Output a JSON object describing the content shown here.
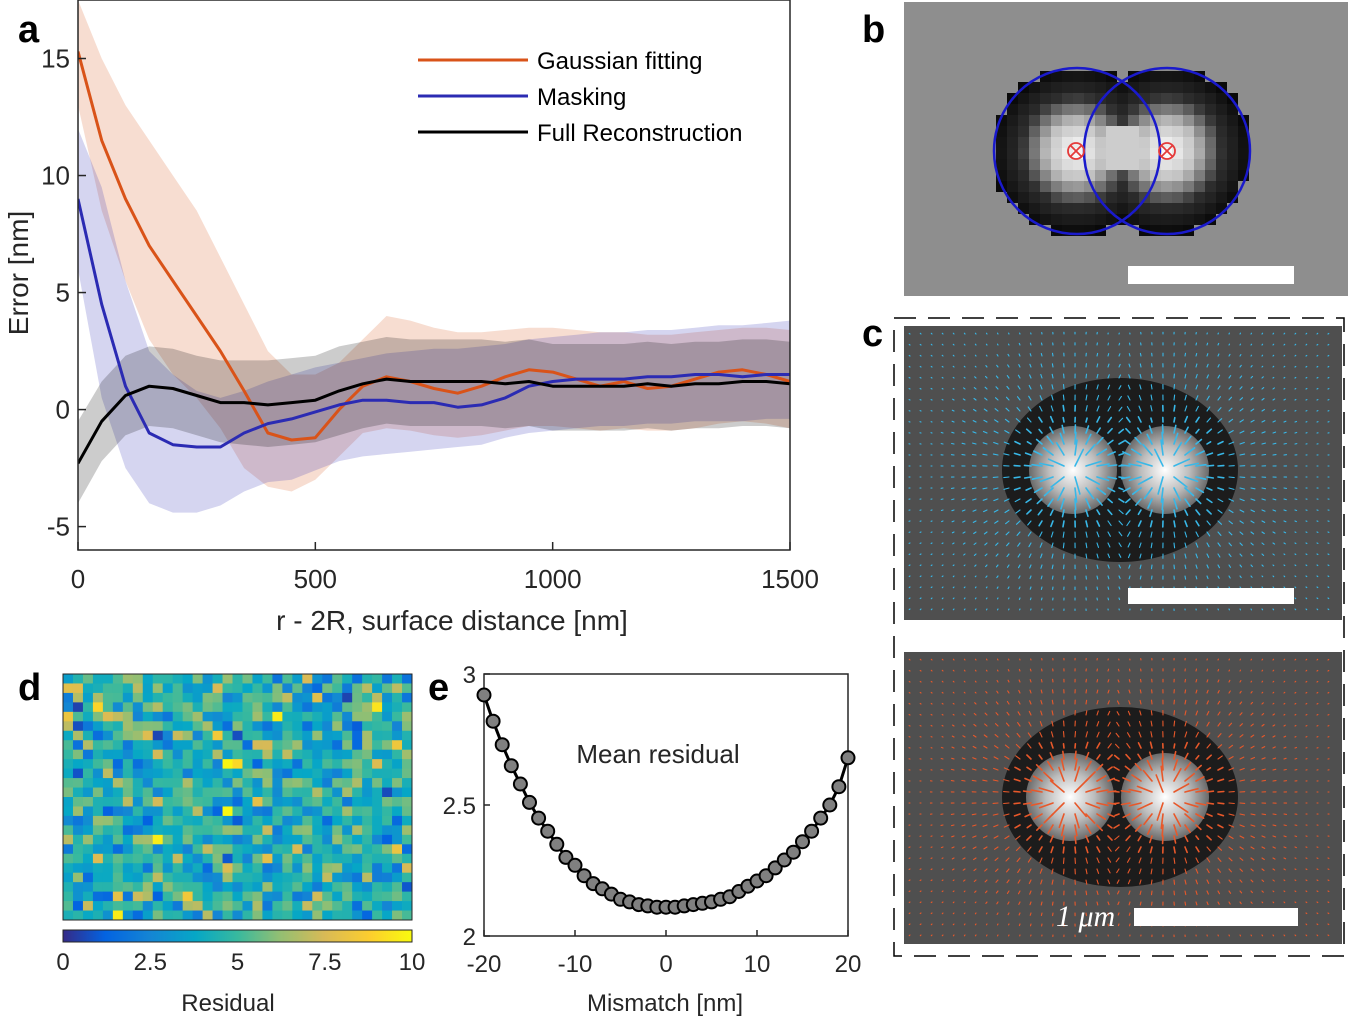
{
  "panel_labels": [
    "a",
    "b",
    "c",
    "d",
    "e"
  ],
  "chart_data": [
    {
      "panel": "a",
      "type": "line",
      "xlabel": "r - 2R, surface distance  [nm]",
      "ylabel": "Error [nm]",
      "xlim": [
        0,
        1500
      ],
      "ylim": [
        -6,
        17.5
      ],
      "xticks": [
        0,
        500,
        1000,
        1500
      ],
      "yticks": [
        -5,
        0,
        5,
        10,
        15
      ],
      "legend_position": "top-right",
      "series": [
        {
          "name": "Gaussian fitting",
          "color": "#d95319",
          "x": [
            0,
            50,
            100,
            150,
            200,
            250,
            300,
            350,
            400,
            450,
            500,
            550,
            600,
            650,
            700,
            750,
            800,
            850,
            900,
            950,
            1000,
            1050,
            1100,
            1150,
            1200,
            1250,
            1300,
            1350,
            1400,
            1450,
            1500
          ],
          "y": [
            15.3,
            11.5,
            9.0,
            7.0,
            5.5,
            4.0,
            2.5,
            0.8,
            -1.0,
            -1.3,
            -1.2,
            0.0,
            1.0,
            1.4,
            1.2,
            0.9,
            0.7,
            1.0,
            1.4,
            1.7,
            1.6,
            1.3,
            1.0,
            1.2,
            0.9,
            1.0,
            1.3,
            1.6,
            1.7,
            1.5,
            1.2
          ],
          "upper": [
            17.5,
            15.0,
            13.0,
            11.5,
            10.0,
            8.5,
            6.5,
            4.5,
            2.5,
            1.5,
            1.5,
            2.0,
            3.0,
            4.0,
            3.8,
            3.5,
            3.3,
            3.3,
            3.4,
            3.5,
            3.5,
            3.4,
            3.3,
            3.3,
            3.2,
            3.2,
            3.3,
            3.4,
            3.5,
            3.5,
            3.4
          ],
          "lower": [
            13.0,
            8.5,
            5.5,
            3.0,
            1.5,
            0.5,
            -0.8,
            -2.5,
            -3.3,
            -3.5,
            -3.0,
            -2.0,
            -1.0,
            -0.8,
            -0.9,
            -1.1,
            -1.2,
            -1.1,
            -0.9,
            -0.7,
            -0.7,
            -0.8,
            -0.9,
            -0.8,
            -0.9,
            -0.9,
            -0.8,
            -0.6,
            -0.5,
            -0.6,
            -0.8
          ]
        },
        {
          "name": "Masking",
          "color": "#2b2bb3",
          "x": [
            0,
            50,
            100,
            150,
            200,
            250,
            300,
            350,
            400,
            450,
            500,
            550,
            600,
            650,
            700,
            750,
            800,
            850,
            900,
            950,
            1000,
            1050,
            1100,
            1150,
            1200,
            1250,
            1300,
            1350,
            1400,
            1450,
            1500
          ],
          "y": [
            9.0,
            4.5,
            1.0,
            -1.0,
            -1.5,
            -1.6,
            -1.6,
            -1.0,
            -0.6,
            -0.4,
            -0.1,
            0.2,
            0.4,
            0.4,
            0.3,
            0.3,
            0.1,
            0.2,
            0.5,
            1.0,
            1.2,
            1.3,
            1.3,
            1.3,
            1.4,
            1.4,
            1.5,
            1.5,
            1.4,
            1.5,
            1.5
          ],
          "upper": [
            12.0,
            9.5,
            5.5,
            2.5,
            1.5,
            0.8,
            0.5,
            0.8,
            1.2,
            1.5,
            1.8,
            2.0,
            2.2,
            2.4,
            2.5,
            2.6,
            2.6,
            2.7,
            2.8,
            3.0,
            3.1,
            3.2,
            3.3,
            3.3,
            3.4,
            3.4,
            3.5,
            3.6,
            3.6,
            3.7,
            3.8
          ],
          "lower": [
            6.0,
            0.5,
            -2.5,
            -4.0,
            -4.4,
            -4.4,
            -4.1,
            -3.5,
            -3.1,
            -3.0,
            -2.6,
            -2.2,
            -2.0,
            -1.9,
            -1.8,
            -1.7,
            -1.6,
            -1.5,
            -1.2,
            -1.0,
            -0.9,
            -0.8,
            -0.7,
            -0.7,
            -0.6,
            -0.6,
            -0.5,
            -0.5,
            -0.5,
            -0.4,
            -0.4
          ]
        },
        {
          "name": "Full Reconstruction",
          "color": "#000000",
          "x": [
            0,
            50,
            100,
            150,
            200,
            250,
            300,
            350,
            400,
            450,
            500,
            550,
            600,
            650,
            700,
            750,
            800,
            850,
            900,
            950,
            1000,
            1050,
            1100,
            1150,
            1200,
            1250,
            1300,
            1350,
            1400,
            1450,
            1500
          ],
          "y": [
            -2.3,
            -0.5,
            0.6,
            1.0,
            0.9,
            0.6,
            0.3,
            0.3,
            0.2,
            0.3,
            0.4,
            0.8,
            1.1,
            1.3,
            1.2,
            1.2,
            1.2,
            1.2,
            1.1,
            1.2,
            1.0,
            1.0,
            1.0,
            1.0,
            1.1,
            1.0,
            1.1,
            1.1,
            1.2,
            1.2,
            1.1
          ],
          "upper": [
            -0.5,
            1.2,
            2.3,
            2.7,
            2.6,
            2.3,
            2.1,
            2.1,
            2.1,
            2.2,
            2.3,
            2.7,
            2.9,
            3.1,
            3.0,
            3.0,
            3.0,
            3.0,
            2.9,
            3.0,
            2.8,
            2.8,
            2.8,
            2.8,
            2.9,
            2.8,
            2.9,
            2.9,
            3.0,
            3.0,
            2.9
          ],
          "lower": [
            -4.0,
            -2.2,
            -1.1,
            -0.7,
            -0.8,
            -1.1,
            -1.4,
            -1.5,
            -1.6,
            -1.5,
            -1.4,
            -1.1,
            -0.8,
            -0.6,
            -0.7,
            -0.7,
            -0.7,
            -0.7,
            -0.8,
            -0.7,
            -0.9,
            -0.9,
            -0.9,
            -0.9,
            -0.8,
            -0.9,
            -0.8,
            -0.8,
            -0.7,
            -0.7,
            -0.8
          ]
        }
      ]
    },
    {
      "panel": "d",
      "type": "heatmap",
      "rows": 26,
      "cols": 35,
      "colormap": "parula",
      "colorbar_label": "Residual",
      "colorbar_ticks": [
        "0",
        "2.5",
        "5",
        "7.5",
        "10"
      ],
      "clim": [
        0,
        10
      ],
      "values_seed": 7
    },
    {
      "panel": "e",
      "type": "scatter",
      "title": "Mean residual",
      "xlabel": "Mismatch [nm]",
      "xlim": [
        -20,
        20
      ],
      "ylim": [
        2,
        3
      ],
      "xticks": [
        -20,
        -10,
        0,
        10,
        20
      ],
      "yticks": [
        2,
        2.5,
        3
      ],
      "xticklabels": [
        "-20",
        "-10",
        "0",
        "10",
        "20"
      ],
      "yticklabels": [
        "2",
        "2.5",
        "3"
      ],
      "x": [
        -20,
        -19,
        -18,
        -17,
        -16,
        -15,
        -14,
        -13,
        -12,
        -11,
        -10,
        -9,
        -8,
        -7,
        -6,
        -5,
        -4,
        -3,
        -2,
        -1,
        0,
        1,
        2,
        3,
        4,
        5,
        6,
        7,
        8,
        9,
        10,
        11,
        12,
        13,
        14,
        15,
        16,
        17,
        18,
        19,
        20
      ],
      "y": [
        2.92,
        2.82,
        2.73,
        2.65,
        2.58,
        2.51,
        2.45,
        2.4,
        2.35,
        2.3,
        2.27,
        2.23,
        2.2,
        2.18,
        2.16,
        2.14,
        2.13,
        2.12,
        2.115,
        2.11,
        2.11,
        2.11,
        2.115,
        2.12,
        2.125,
        2.13,
        2.14,
        2.15,
        2.17,
        2.19,
        2.21,
        2.23,
        2.26,
        2.29,
        2.32,
        2.36,
        2.4,
        2.45,
        2.5,
        2.57,
        2.68
      ]
    }
  ],
  "panel_b": {
    "circle_color": "#1a1acc",
    "marker_color": "#e53a3a"
  },
  "panel_c": {
    "top_arrow_color": "#38b8e8",
    "bottom_arrow_color": "#e8582a",
    "scalebar_label": "1 μm"
  }
}
